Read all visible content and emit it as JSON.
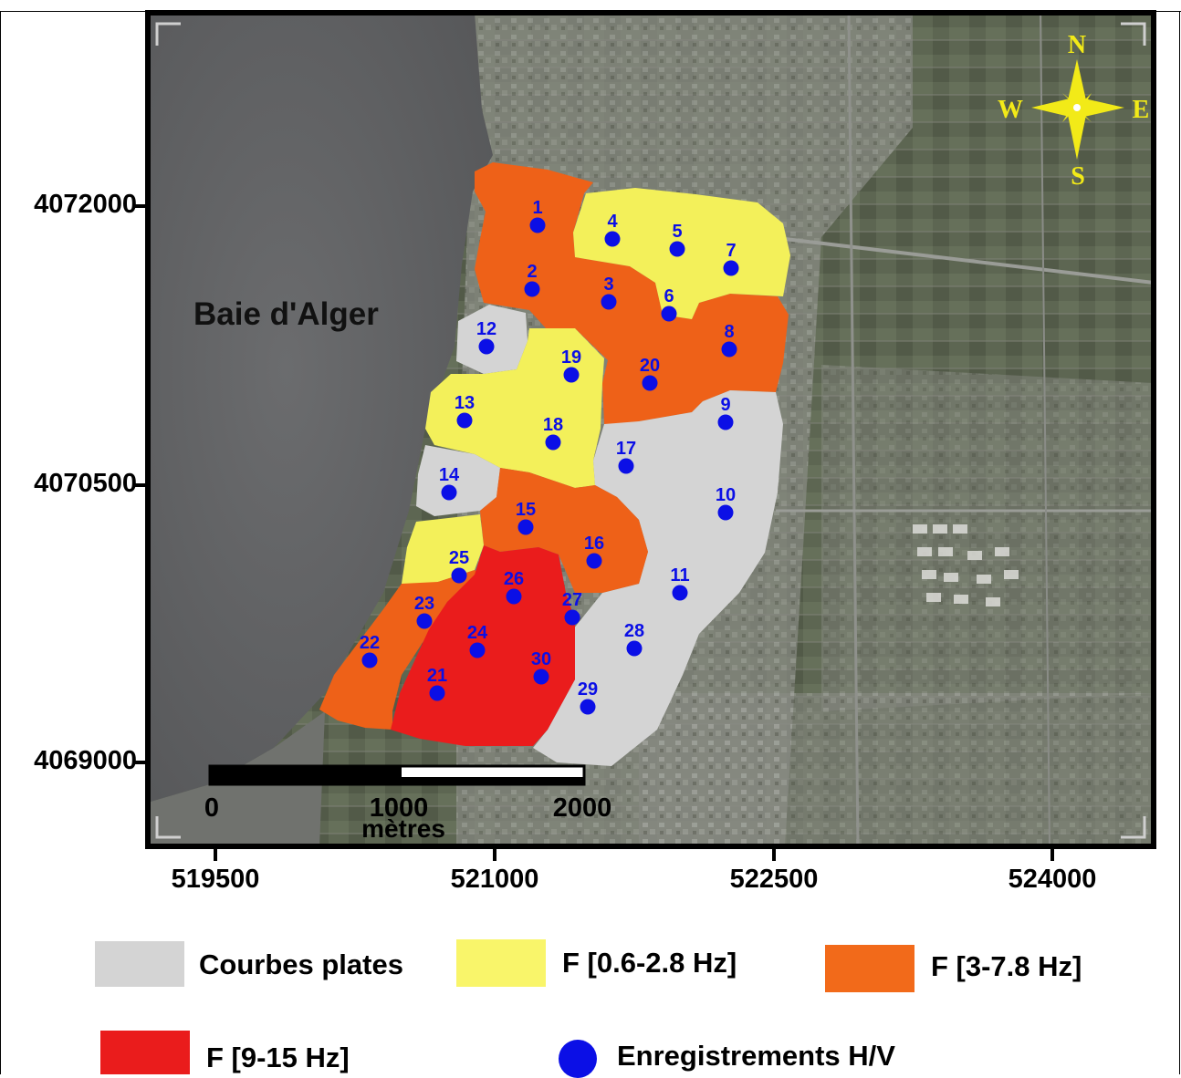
{
  "map": {
    "place_label": "Baie d'Alger",
    "compass": {
      "n": "N",
      "s": "S",
      "e": "E",
      "w": "W"
    },
    "scalebar": {
      "ticks": [
        "0",
        "1000",
        "2000"
      ],
      "unit": "mètres"
    },
    "y_ticks": [
      "4072000",
      "4070500",
      "4069000"
    ],
    "x_ticks": [
      "519500",
      "521000",
      "522500",
      "524000"
    ]
  },
  "zones": {
    "flat": {
      "color": "#d4d4d4"
    },
    "yellow": {
      "color": "#f3f05a"
    },
    "orange": {
      "color": "#ee6118"
    },
    "red": {
      "color": "#ea1c1c"
    }
  },
  "points": {
    "color": "#0b0fe6",
    "labels": [
      "1",
      "2",
      "3",
      "4",
      "5",
      "6",
      "7",
      "8",
      "9",
      "10",
      "11",
      "12",
      "13",
      "14",
      "15",
      "16",
      "17",
      "18",
      "19",
      "20",
      "21",
      "22",
      "23",
      "24",
      "25",
      "26",
      "27",
      "28",
      "29",
      "30"
    ]
  },
  "legend": {
    "flat": "Courbes plates",
    "yellow": "F [0.6-2.8 Hz]",
    "orange": "F [3-7.8 Hz]",
    "red": "F [9-15 Hz]",
    "points": "Enregistrements H/V"
  }
}
